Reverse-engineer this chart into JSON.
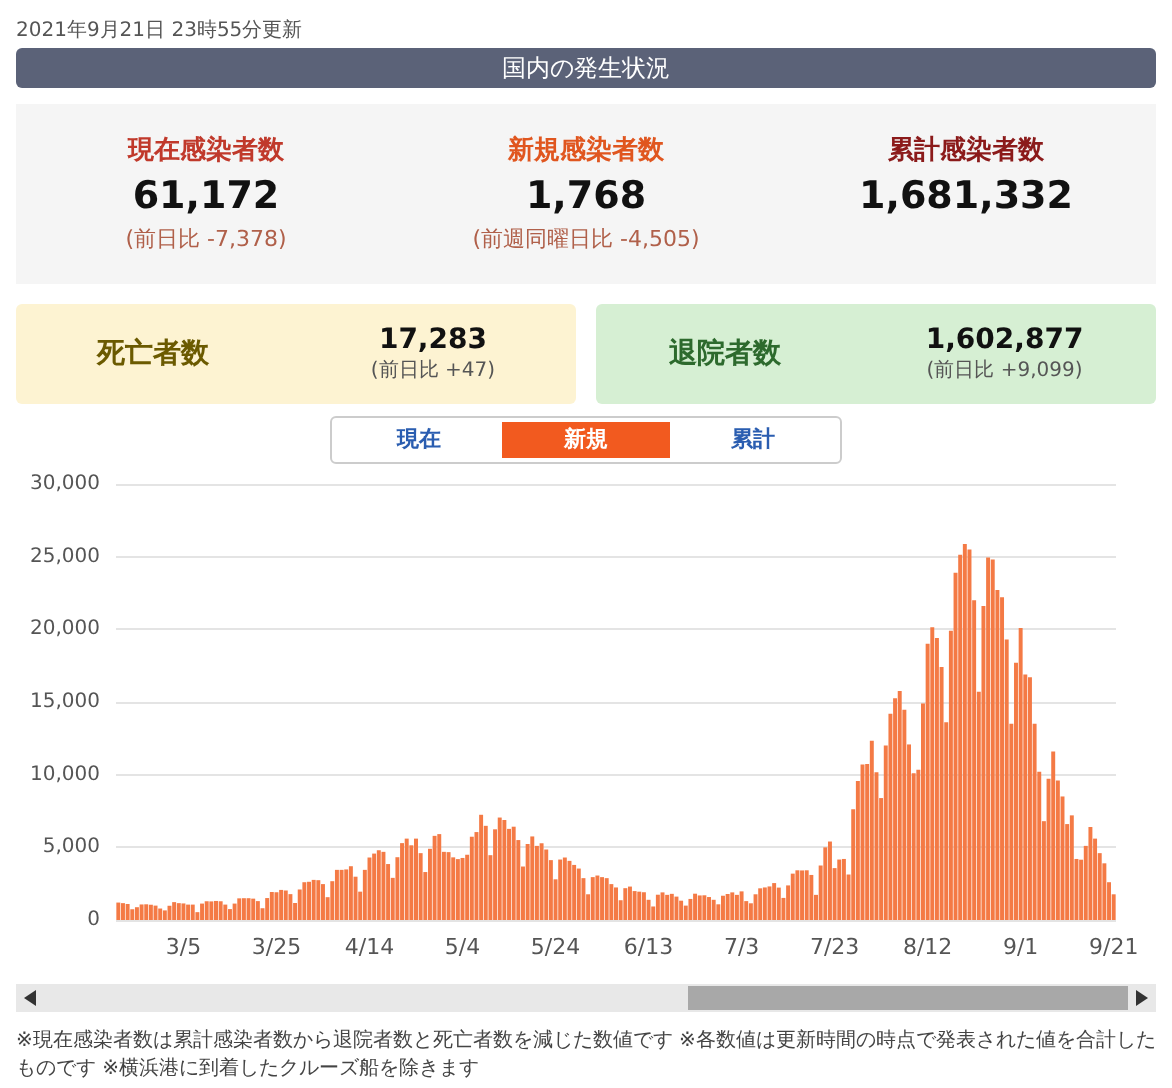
{
  "chart_data": [
    {
      "type": "other",
      "title": "国内の発生状況",
      "subtitle": "2021年9月21日 23時55分更新",
      "categories": [
        "現在感染者数",
        "新規感染者数",
        "累計感染者数",
        "死亡者数",
        "退院者数"
      ],
      "value_labels": [
        "61,172",
        "1,768",
        "1,681,332",
        "17,283",
        "1,602,877"
      ],
      "annotations": [
        {
          "text": "(前日比 -7,378)",
          "x": "現在感染者数"
        },
        {
          "text": "(前週同曜日比 -4,505)",
          "x": "新規感染者数"
        },
        {
          "text": "(前日比 +47)",
          "x": "死亡者数"
        },
        {
          "text": "(前日比 +9,099)",
          "x": "退院者数"
        }
      ]
    },
    {
      "type": "bar",
      "color": "#f47a45",
      "grid": "y",
      "ylim": [
        0,
        30000
      ],
      "yticks": [
        0,
        {
          "value": 5000,
          "label": "5,000"
        },
        {
          "value": 10000,
          "label": "10,000"
        },
        {
          "value": 15000,
          "label": "15,000"
        },
        {
          "value": 20000,
          "label": "20,000"
        },
        {
          "value": 25000,
          "label": "25,000"
        },
        {
          "value": 30000,
          "label": "30,000"
        }
      ],
      "categories": [
        null,
        null,
        null,
        null,
        null,
        null,
        null,
        null,
        null,
        null,
        null,
        null,
        null,
        null,
        "3/5",
        null,
        null,
        null,
        null,
        null,
        null,
        null,
        null,
        null,
        null,
        null,
        null,
        null,
        null,
        null,
        null,
        null,
        null,
        null,
        "3/25",
        null,
        null,
        null,
        null,
        null,
        null,
        null,
        null,
        null,
        null,
        null,
        null,
        null,
        null,
        null,
        null,
        null,
        null,
        null,
        "4/14",
        null,
        null,
        null,
        null,
        null,
        null,
        null,
        null,
        null,
        null,
        null,
        null,
        null,
        null,
        null,
        null,
        null,
        null,
        null,
        "5/4",
        null,
        null,
        null,
        null,
        null,
        null,
        null,
        null,
        null,
        null,
        null,
        null,
        null,
        null,
        null,
        null,
        null,
        null,
        null,
        "5/24",
        null,
        null,
        null,
        null,
        null,
        null,
        null,
        null,
        null,
        null,
        null,
        null,
        null,
        null,
        null,
        null,
        null,
        null,
        null,
        "6/13",
        null,
        null,
        null,
        null,
        null,
        null,
        null,
        null,
        null,
        null,
        null,
        null,
        null,
        null,
        null,
        null,
        null,
        null,
        null,
        "7/3",
        null,
        null,
        null,
        null,
        null,
        null,
        null,
        null,
        null,
        null,
        null,
        null,
        null,
        null,
        null,
        null,
        null,
        null,
        null,
        "7/23",
        null,
        null,
        null,
        null,
        null,
        null,
        null,
        null,
        null,
        null,
        null,
        null,
        null,
        null,
        null,
        null,
        null,
        null,
        null,
        "8/12",
        null,
        null,
        null,
        null,
        null,
        null,
        null,
        null,
        null,
        null,
        null,
        null,
        null,
        null,
        null,
        null,
        null,
        null,
        null,
        "9/1",
        null,
        null,
        null,
        null,
        null,
        null,
        null,
        null,
        null,
        null,
        null,
        null,
        null,
        null,
        null,
        null,
        null,
        null,
        null,
        "9/21"
      ],
      "values": [
        1200,
        1160,
        1100,
        740,
        880,
        1070,
        1080,
        1050,
        990,
        790,
        660,
        980,
        1230,
        1160,
        1140,
        1060,
        1060,
        540,
        1130,
        1290,
        1280,
        1310,
        1290,
        1060,
        750,
        1130,
        1490,
        1500,
        1500,
        1470,
        1300,
        810,
        1510,
        1920,
        1910,
        2070,
        2030,
        1780,
        1170,
        2100,
        2600,
        2630,
        2760,
        2740,
        2470,
        1570,
        2670,
        3450,
        3450,
        3480,
        3700,
        2980,
        1950,
        3450,
        4300,
        4570,
        4800,
        4690,
        3850,
        2900,
        4320,
        5290,
        5600,
        5140,
        5600,
        4600,
        3300,
        4900,
        5790,
        5910,
        4690,
        4670,
        4310,
        4190,
        4270,
        4490,
        5730,
        6050,
        7240,
        6480,
        4460,
        6240,
        7050,
        6880,
        6270,
        6420,
        5500,
        3680,
        5230,
        5750,
        5100,
        5280,
        4850,
        4120,
        2800,
        4160,
        4300,
        4070,
        3790,
        3540,
        2880,
        1770,
        2950,
        3060,
        2950,
        2880,
        2470,
        2240,
        1360,
        2190,
        2300,
        1990,
        1950,
        1910,
        1390,
        930,
        1740,
        1900,
        1730,
        1800,
        1610,
        1330,
        990,
        1450,
        1810,
        1690,
        1700,
        1580,
        1390,
        1080,
        1670,
        1790,
        1900,
        1730,
        1970,
        1300,
        1150,
        1770,
        2180,
        2240,
        2310,
        2540,
        2230,
        1520,
        2380,
        3190,
        3420,
        3410,
        3420,
        3100,
        1730,
        3750,
        5000,
        5400,
        3570,
        4160,
        4200,
        3130,
        7620,
        9570,
        10700,
        10740,
        12340,
        10170,
        8390,
        12000,
        14200,
        15250,
        15750,
        14470,
        12080,
        10100,
        10340,
        14900,
        19000,
        20150,
        19400,
        17400,
        13600,
        19900,
        23900,
        25140,
        25870,
        25500,
        22000,
        15700,
        21600,
        24950,
        24800,
        22700,
        22200,
        19300,
        13500,
        17700,
        20100,
        16900,
        16700,
        13500,
        10200,
        6800,
        9720,
        11600,
        9600,
        8500,
        6600,
        7200,
        4200,
        4150,
        5100,
        6400,
        5600,
        4600,
        3900,
        2600,
        1768
      ],
      "annotations": [
        "現在",
        "新規",
        "累計",
        "※現在感染者数は累計感染者数から退院者数と死亡者数を減じた数値です ※各数値は更新時間の時点で発表された値を合計したものです ※横浜港に到着したクルーズ船を除きます"
      ]
    }
  ]
}
